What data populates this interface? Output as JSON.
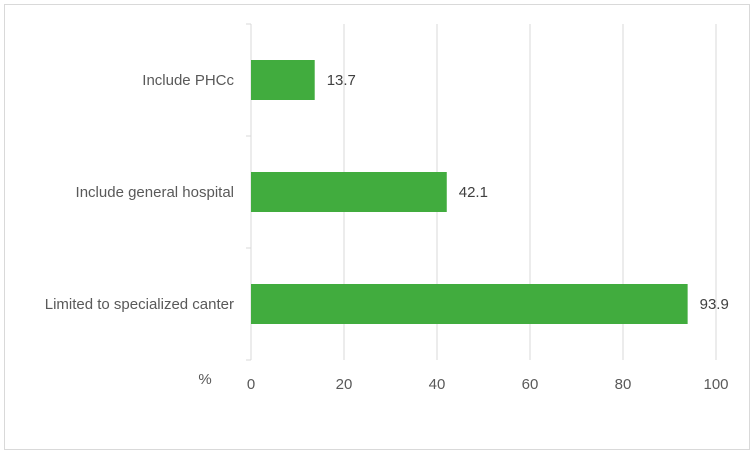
{
  "chart_data": {
    "type": "bar",
    "orientation": "horizontal",
    "categories": [
      "Limited to specialized canter",
      "Include general hospital",
      "Include PHCc"
    ],
    "values": [
      93.9,
      42.1,
      13.7
    ],
    "data_labels": [
      "93.9",
      "42.1",
      "13.7"
    ],
    "xlabel": "%",
    "xlim": [
      0,
      100
    ],
    "x_ticks": [
      0,
      20,
      40,
      60,
      80,
      100
    ],
    "grid": true,
    "legend": "none",
    "bar_color": "#41ac3e"
  }
}
